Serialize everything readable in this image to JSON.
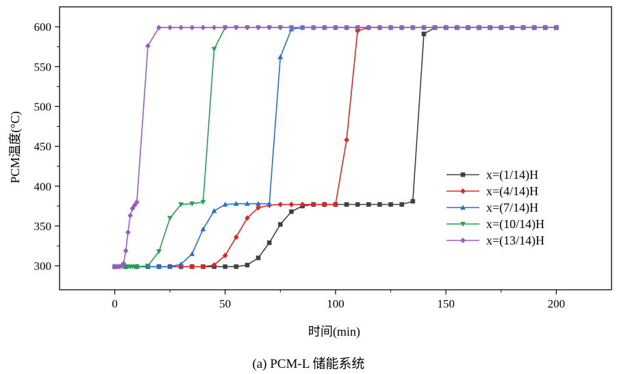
{
  "caption": "(a) PCM-L 储能系统",
  "chart_data": {
    "type": "line",
    "xlabel": "时间(min)",
    "ylabel": "PCM温度(°C)",
    "xlim": [
      -25,
      225
    ],
    "ylim": [
      270,
      625
    ],
    "xticks": [
      0,
      50,
      100,
      150,
      200
    ],
    "yticks": [
      300,
      350,
      400,
      450,
      500,
      550,
      600
    ],
    "legend_position": "right",
    "series": [
      {
        "name": "x=(1/14)H",
        "color": "#404040",
        "marker": "square",
        "x": [
          0,
          5,
          10,
          15,
          20,
          25,
          30,
          35,
          40,
          45,
          50,
          55,
          60,
          65,
          70,
          75,
          80,
          85,
          90,
          95,
          100,
          105,
          110,
          115,
          120,
          125,
          130,
          135,
          140,
          145,
          150,
          155,
          160,
          165,
          170,
          175,
          180,
          185,
          190,
          195,
          200
        ],
        "y": [
          299,
          299,
          299,
          299,
          299,
          299,
          299,
          299,
          299,
          299,
          299,
          299,
          301,
          310,
          329,
          352,
          368,
          375,
          377,
          377,
          377,
          377,
          377,
          377,
          377,
          377,
          377,
          381,
          591,
          599,
          599,
          599,
          599,
          599,
          599,
          599,
          599,
          599,
          599,
          599,
          599
        ]
      },
      {
        "name": "x=(4/14)H",
        "color": "#e8231f",
        "marker": "diamond",
        "x": [
          0,
          5,
          10,
          15,
          20,
          25,
          30,
          35,
          40,
          45,
          50,
          55,
          60,
          65,
          70,
          75,
          80,
          85,
          90,
          95,
          100,
          105,
          110,
          115,
          120,
          125,
          130,
          135,
          140,
          145,
          150,
          155,
          160,
          165,
          170,
          175,
          180,
          185,
          190,
          195,
          200
        ],
        "y": [
          299,
          299,
          299,
          299,
          299,
          299,
          299,
          299,
          299,
          301,
          313,
          336,
          360,
          373,
          376,
          377,
          377,
          377,
          377,
          377,
          377,
          458,
          595,
          599,
          599,
          599,
          599,
          599,
          599,
          599,
          599,
          599,
          599,
          599,
          599,
          599,
          599,
          599,
          599,
          599,
          599
        ]
      },
      {
        "name": "x=(7/14)H",
        "color": "#1f6fd6",
        "marker": "triangle-up",
        "x": [
          0,
          5,
          10,
          15,
          20,
          25,
          30,
          35,
          40,
          45,
          50,
          55,
          60,
          65,
          70,
          75,
          80,
          85,
          90,
          95,
          100,
          105,
          110,
          115,
          120,
          125,
          130,
          135,
          140,
          145,
          150,
          155,
          160,
          165,
          170,
          175,
          180,
          185,
          190,
          195,
          200
        ],
        "y": [
          299,
          299,
          299,
          299,
          299,
          299,
          302,
          315,
          346,
          369,
          377,
          378,
          378,
          378,
          378,
          562,
          597,
          599,
          599,
          599,
          599,
          599,
          599,
          599,
          599,
          599,
          599,
          599,
          599,
          599,
          599,
          599,
          599,
          599,
          599,
          599,
          599,
          599,
          599,
          599,
          599
        ]
      },
      {
        "name": "x=(10/14)H",
        "color": "#22a24a",
        "marker": "triangle-down",
        "x": [
          0,
          1,
          2,
          3,
          4,
          5,
          6,
          7,
          8,
          9,
          10,
          15,
          20,
          25,
          30,
          35,
          40,
          45,
          50,
          55,
          60,
          65,
          70,
          75,
          80,
          85,
          90,
          95,
          100,
          105,
          110,
          115,
          120,
          125,
          130,
          135,
          140,
          145,
          150,
          155,
          160,
          165,
          170,
          175,
          180,
          185,
          190,
          195,
          200
        ],
        "y": [
          299,
          299,
          299,
          299,
          299,
          299,
          299,
          299,
          299,
          299,
          299,
          300,
          318,
          360,
          377,
          378,
          380,
          572,
          599,
          599,
          599,
          599,
          599,
          599,
          599,
          599,
          599,
          599,
          599,
          599,
          599,
          599,
          599,
          599,
          599,
          599,
          599,
          599,
          599,
          599,
          599,
          599,
          599,
          599,
          599,
          599,
          599,
          599,
          599
        ]
      },
      {
        "name": "x=(13/14)H",
        "color": "#9b59d0",
        "marker": "diamond",
        "x": [
          0,
          1,
          2,
          3,
          4,
          5,
          6,
          7,
          8,
          9,
          10,
          15,
          20,
          25,
          30,
          35,
          40,
          45,
          50,
          55,
          60,
          65,
          70,
          75,
          80,
          85,
          90,
          95,
          100,
          105,
          110,
          115,
          120,
          125,
          130,
          135,
          140,
          145,
          150,
          155,
          160,
          165,
          170,
          175,
          180,
          185,
          190,
          195,
          200
        ],
        "y": [
          299,
          299,
          299,
          300,
          303,
          319,
          342,
          363,
          372,
          376,
          380,
          576,
          599,
          599,
          599,
          599,
          599,
          599,
          599,
          599,
          599,
          599,
          599,
          599,
          599,
          599,
          599,
          599,
          599,
          599,
          599,
          599,
          599,
          599,
          599,
          599,
          599,
          599,
          599,
          599,
          599,
          599,
          599,
          599,
          599,
          599,
          599,
          599,
          599
        ]
      }
    ]
  }
}
